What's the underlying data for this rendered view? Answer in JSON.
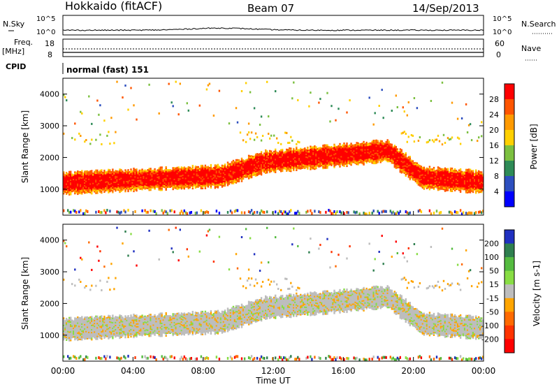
{
  "header": {
    "station": "Hokkaido (fitACF)",
    "beam": "Beam 07",
    "date": "14/Sep/2013"
  },
  "noise_panel": {
    "left_label": "N.Sky",
    "left_ticks": [
      "10^5",
      "10^0"
    ],
    "right_ticks": [
      "10^5",
      "10^0"
    ],
    "right_label": "N.Search"
  },
  "freq_panel": {
    "left_label_1": "Freq.",
    "left_label_2": "[MHz]",
    "left_ticks": [
      "18",
      "8"
    ],
    "right_ticks": [
      "60",
      "0"
    ],
    "right_label": "Nave"
  },
  "cpid": {
    "label": "CPID",
    "mode": "normal (fast) 151"
  },
  "chart_data": [
    {
      "type": "heatmap",
      "name": "power",
      "ylabel": "Slant Range [km]",
      "ylim": [
        180,
        4500
      ],
      "yticks": [
        "1000",
        "2000",
        "3000",
        "4000"
      ],
      "ytick_values": [
        1000,
        2000,
        3000,
        4000
      ],
      "colorbar": {
        "label": "Power [dB]",
        "ticks": [
          "4",
          "8",
          "12",
          "16",
          "20",
          "24",
          "28"
        ],
        "range": [
          0,
          30
        ],
        "colors": [
          "#0000ff",
          "#2d4fbf",
          "#2e8b57",
          "#7cc040",
          "#ffd000",
          "#ff9a00",
          "#ff5500",
          "#ff0000"
        ]
      },
      "bands": [
        {
          "range_km": [
            950,
            1500
          ],
          "hours": [
            0,
            9.5
          ],
          "level": "strong"
        },
        {
          "range_km": [
            1500,
            2300
          ],
          "hours": [
            9.5,
            20.5
          ],
          "level": "strong"
        },
        {
          "range_km": [
            900,
            1400
          ],
          "hours": [
            20.5,
            24
          ],
          "level": "strong"
        },
        {
          "range_km": [
            2400,
            2800
          ],
          "hours": [
            0,
            2.5
          ],
          "level": "medium"
        },
        {
          "range_km": [
            2600,
            2900
          ],
          "hours": [
            10,
            13
          ],
          "level": "medium"
        }
      ]
    },
    {
      "type": "heatmap",
      "name": "velocity",
      "ylabel": "Slant Range [km]",
      "ylim": [
        180,
        4500
      ],
      "yticks": [
        "1000",
        "2000",
        "3000",
        "4000"
      ],
      "ytick_values": [
        1000,
        2000,
        3000,
        4000
      ],
      "colorbar": {
        "label": "Velocity [m s-1]",
        "ticks": [
          "200",
          "100",
          "50",
          "15",
          "-15",
          "-50",
          "-100",
          "-200"
        ],
        "colors": [
          "#2030c0",
          "#2f7f4f",
          "#55bb40",
          "#88dd44",
          "#bdbdbd",
          "#ffa500",
          "#ff6a00",
          "#ff3300",
          "#ff0000"
        ]
      }
    }
  ],
  "x_axis": {
    "label": "Time UT",
    "ticks": [
      "00:00",
      "04:00",
      "08:00",
      "12:00",
      "16:00",
      "20:00",
      "00:00"
    ],
    "tick_hours": [
      0,
      4,
      8,
      12,
      16,
      20,
      24
    ]
  }
}
